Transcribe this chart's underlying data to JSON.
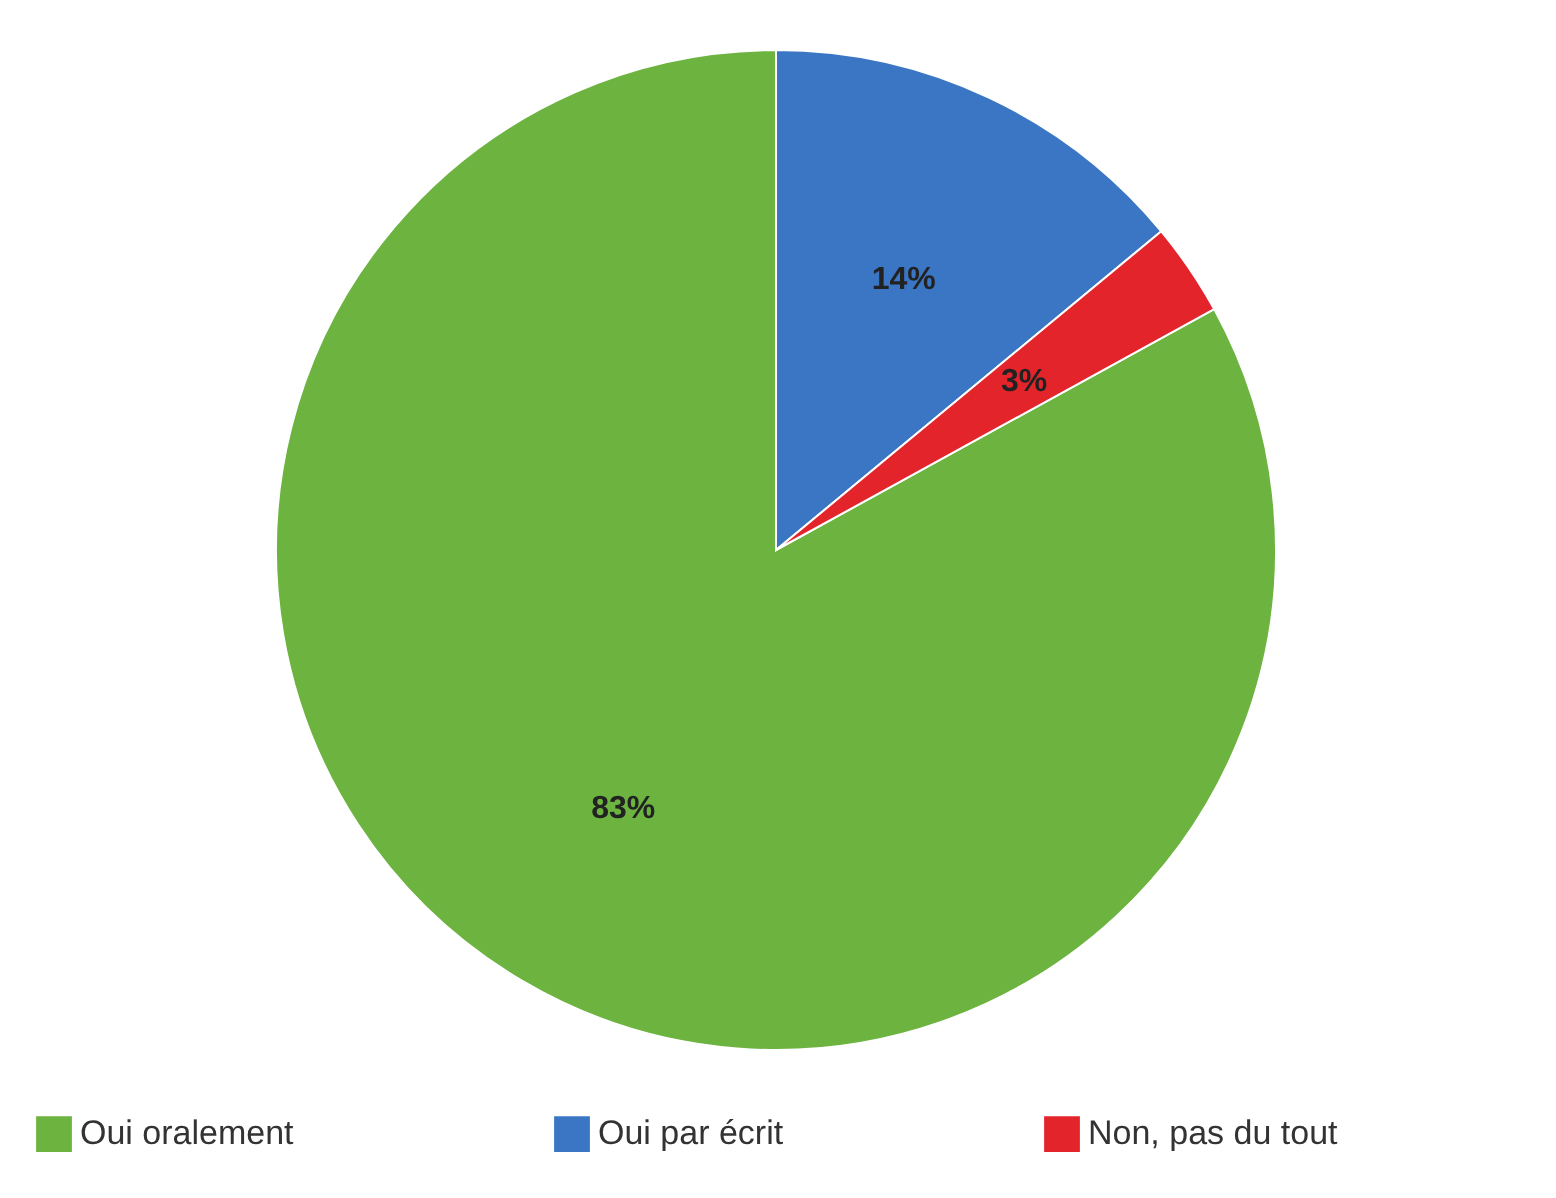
{
  "chart_data": {
    "type": "pie",
    "categories": [
      "Oui oralement",
      "Oui par écrit",
      "Non, pas du tout"
    ],
    "values": [
      83,
      14,
      3
    ],
    "value_labels": [
      "83%",
      "14%",
      "3%"
    ],
    "colors": [
      "#6cb33f",
      "#3a76c4",
      "#e3242b"
    ],
    "legend": "bottom"
  }
}
